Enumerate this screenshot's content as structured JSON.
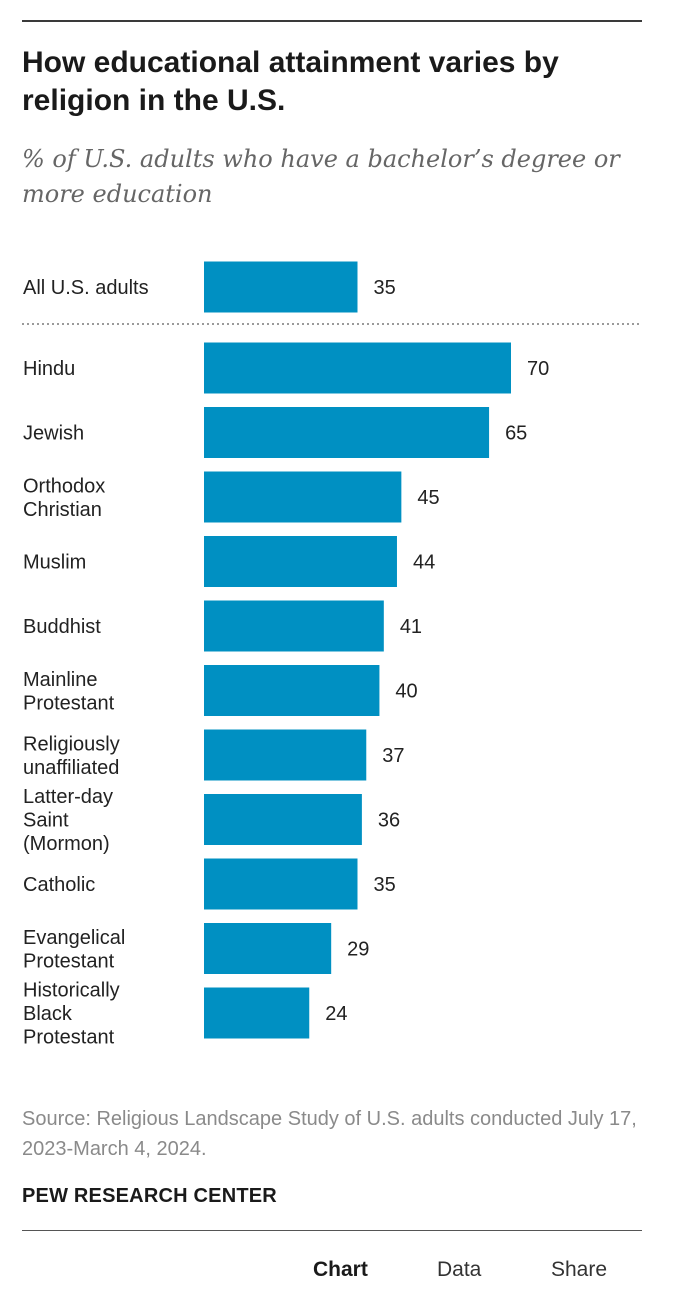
{
  "header": {
    "title": "How educational attainment varies by religion in the U.S.",
    "subtitle": "% of U.S. adults who have a bachelor’s degree or more education"
  },
  "chart_data": {
    "type": "bar",
    "orientation": "horizontal",
    "categories": [
      [
        "All U.S. adults"
      ],
      [
        "Hindu"
      ],
      [
        "Jewish"
      ],
      [
        "Orthodox",
        "Christian"
      ],
      [
        "Muslim"
      ],
      [
        "Buddhist"
      ],
      [
        "Mainline",
        "Protestant"
      ],
      [
        "Religiously",
        "unaffiliated"
      ],
      [
        "Latter-day",
        "Saint",
        "(Mormon)"
      ],
      [
        "Catholic"
      ],
      [
        "Evangelical",
        "Protestant"
      ],
      [
        "Historically",
        "Black",
        "Protestant"
      ]
    ],
    "values": [
      35,
      70,
      65,
      45,
      44,
      41,
      40,
      37,
      36,
      35,
      29,
      24
    ],
    "data_labels": [
      "35",
      "70",
      "65",
      "45",
      "44",
      "41",
      "40",
      "37",
      "36",
      "35",
      "29",
      "24"
    ],
    "xlim": [
      0,
      70
    ],
    "grid": false,
    "bar_color": "#0090c2",
    "separator_after_index": 0
  },
  "footer": {
    "source": "Source: Religious Landscape Study of U.S. adults conducted July 17, 2023-March 4, 2024.",
    "brand": "PEW RESEARCH CENTER"
  },
  "tabs": {
    "chart": "Chart",
    "data": "Data",
    "share": "Share",
    "active": "chart"
  }
}
